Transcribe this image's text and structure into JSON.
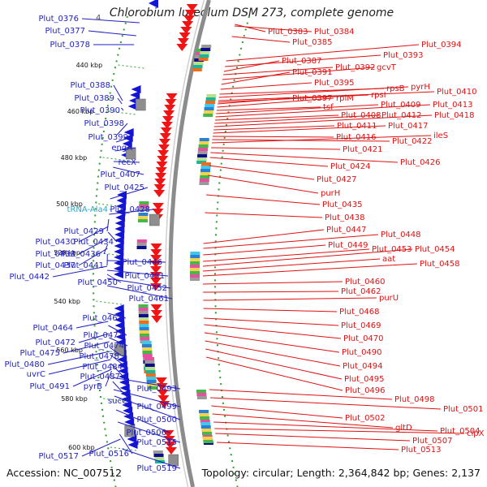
{
  "title": "Chlorobium luteolum DSM 273, complete genome",
  "footer": {
    "accession": "Accession: NC_007512",
    "summary": "Topology: circular; Length: 2,364,842 bp; Genes: 2,137"
  },
  "colors": {
    "left_label": "#1f1fbf",
    "right_label": "#e01010",
    "trna_label": "#2aa8c8",
    "left_arrow": "#1414d4",
    "right_arrow": "#f01414",
    "ruler": "#2e9e2e",
    "backbone": "#8c8c8c"
  },
  "kbp_marks": [
    {
      "label": "440 kbp",
      "line": "dotted"
    },
    {
      "label": "460 kbp",
      "line": "dotted"
    },
    {
      "label": "480 kbp",
      "line": "dotted"
    },
    {
      "label": "500 kbp",
      "line": "dotted"
    },
    {
      "label": "520 kbp",
      "line": "dotted"
    },
    {
      "label": "540 kbp",
      "line": "dotted"
    },
    {
      "label": "560 kbp",
      "line": "dotted"
    },
    {
      "label": "580 kbp",
      "line": "dotted"
    },
    {
      "label": "600 kbp",
      "line": "dotted"
    }
  ],
  "left_labels": [
    {
      "text": "Plut_0376"
    },
    {
      "text": "4"
    },
    {
      "text": "Plut_0377"
    },
    {
      "text": "Plut_0378"
    },
    {
      "text": "Plut_0388"
    },
    {
      "text": "Plut_0389"
    },
    {
      "text": "Plut_0390"
    },
    {
      "text": "Plut_0398"
    },
    {
      "text": "Plut_0399"
    },
    {
      "text": "engA"
    },
    {
      "text": "recX"
    },
    {
      "text": "Plut_0407"
    },
    {
      "text": "Plut_0425"
    },
    {
      "text": "tRNA-Ala4"
    },
    {
      "text": "Plut_0428"
    },
    {
      "text": "Plut_0429"
    },
    {
      "text": "Plut_0430"
    },
    {
      "text": "Plut_0434"
    },
    {
      "text": "Plut_0433"
    },
    {
      "text": "Plut_0436"
    },
    {
      "text": "Plut_0437"
    },
    {
      "text": "Plut_0441"
    },
    {
      "text": "Plut_0446"
    },
    {
      "text": "Plut_0442"
    },
    {
      "text": "Plut_0451"
    },
    {
      "text": "Plut_0450"
    },
    {
      "text": "Plut_0452"
    },
    {
      "text": "Plut_0461"
    },
    {
      "text": "Plut_0463"
    },
    {
      "text": "Plut_0464"
    },
    {
      "text": "Plut_0471"
    },
    {
      "text": "Plut_0472"
    },
    {
      "text": "Plut_0474"
    },
    {
      "text": "Plut_0475"
    },
    {
      "text": "Plut_0478"
    },
    {
      "text": "Plut_0480"
    },
    {
      "text": "Plut_0484"
    },
    {
      "text": "uvrC"
    },
    {
      "text": "Plut_0487"
    },
    {
      "text": "Plut_0491"
    },
    {
      "text": "pyrB"
    },
    {
      "text": "Plut_0493"
    },
    {
      "text": "sucC"
    },
    {
      "text": "Plut_0499"
    },
    {
      "text": "Plut_0500"
    },
    {
      "text": "Plut_0506"
    },
    {
      "text": "Plut_0515"
    },
    {
      "text": "Plut_0516"
    },
    {
      "text": "Plut_0517"
    },
    {
      "text": "Plut_0519"
    }
  ],
  "right_labels": [
    {
      "text": "Plut_0383"
    },
    {
      "text": "Plut_0384"
    },
    {
      "text": "Plut_0385"
    },
    {
      "text": "Plut_0394"
    },
    {
      "text": "Plut_0393"
    },
    {
      "text": "Plut_0387"
    },
    {
      "text": "Plut_0392"
    },
    {
      "text": "gcvT"
    },
    {
      "text": "Plut_0391"
    },
    {
      "text": "Plut_0395"
    },
    {
      "text": "rpsB"
    },
    {
      "text": "pyrH"
    },
    {
      "text": "Plut_0410"
    },
    {
      "text": "rpsI"
    },
    {
      "text": "Plut_0397"
    },
    {
      "text": "rplM"
    },
    {
      "text": "tsf"
    },
    {
      "text": "Plut_0409"
    },
    {
      "text": "Plut_0413"
    },
    {
      "text": "Plut_0408"
    },
    {
      "text": "Plut_0412"
    },
    {
      "text": "Plut_0418"
    },
    {
      "text": "Plut_0411"
    },
    {
      "text": "Plut_0417"
    },
    {
      "text": "Plut_0416"
    },
    {
      "text": "Plut_0422"
    },
    {
      "text": "ileS"
    },
    {
      "text": "Plut_0421"
    },
    {
      "text": "Plut_0426"
    },
    {
      "text": "Plut_0424"
    },
    {
      "text": "Plut_0427"
    },
    {
      "text": "purH"
    },
    {
      "text": "Plut_0435"
    },
    {
      "text": "Plut_0438"
    },
    {
      "text": "Plut_0447"
    },
    {
      "text": "Plut_0448"
    },
    {
      "text": "Plut_0449"
    },
    {
      "text": "Plut_0453"
    },
    {
      "text": "Plut_0454"
    },
    {
      "text": "aat"
    },
    {
      "text": "Plut_0458"
    },
    {
      "text": "Plut_0460"
    },
    {
      "text": "Plut_0462"
    },
    {
      "text": "purU"
    },
    {
      "text": "Plut_0468"
    },
    {
      "text": "Plut_0469"
    },
    {
      "text": "Plut_0470"
    },
    {
      "text": "Plut_0490"
    },
    {
      "text": "Plut_0494"
    },
    {
      "text": "Plut_0495"
    },
    {
      "text": "Plut_0496"
    },
    {
      "text": "Plut_0498"
    },
    {
      "text": "Plut_0501"
    },
    {
      "text": "Plut_0502"
    },
    {
      "text": "gltD"
    },
    {
      "text": "Plut_0504"
    },
    {
      "text": "clpX"
    },
    {
      "text": "Plut_0507"
    },
    {
      "text": "Plut_0513"
    }
  ]
}
